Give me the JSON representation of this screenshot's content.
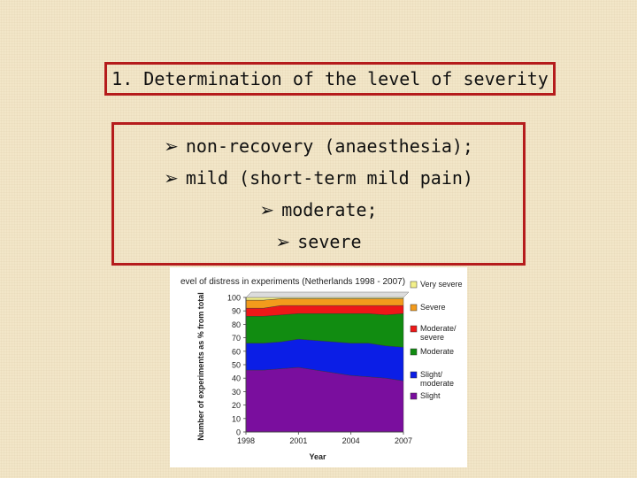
{
  "slide": {
    "title": "1. Determination of the level of severity",
    "bullets": [
      "non-recovery (anaesthesia);",
      "mild (short-term mild pain)",
      "moderate;",
      "severe"
    ],
    "bullet_icon": "arrow-right-icon"
  },
  "chart_data": {
    "type": "area",
    "stacked": true,
    "title": "evel of distress in experiments (Netherlands 1998 - 2007)",
    "xlabel": "Year",
    "ylabel": "Number of experiments as % from total",
    "x": [
      1998,
      1999,
      2000,
      2001,
      2002,
      2003,
      2004,
      2005,
      2006,
      2007
    ],
    "x_tick_labels": [
      "1998",
      "2001",
      "2004",
      "2007"
    ],
    "y_tick_labels": [
      "0",
      "10",
      "20",
      "30",
      "40",
      "50",
      "60",
      "70",
      "80",
      "90",
      "100"
    ],
    "ylim": [
      0,
      100
    ],
    "grid": false,
    "legend_position": "right",
    "series": [
      {
        "name": "Slight",
        "color": "#7a0e9e",
        "values": [
          46,
          46,
          47,
          48,
          46,
          44,
          42,
          41,
          40,
          38
        ]
      },
      {
        "name": "Slight/ moderate",
        "color": "#0b1ee6",
        "values": [
          20,
          20,
          20,
          21,
          22,
          23,
          24,
          25,
          24,
          25
        ]
      },
      {
        "name": "Moderate",
        "color": "#118c11",
        "values": [
          20,
          20,
          20,
          19,
          20,
          21,
          22,
          22,
          23,
          25
        ]
      },
      {
        "name": "Moderate/ severe",
        "color": "#ee1818",
        "values": [
          6,
          6,
          7,
          6,
          6,
          6,
          6,
          6,
          7,
          6
        ]
      },
      {
        "name": "Severe",
        "color": "#f39b1c",
        "values": [
          6,
          6,
          5,
          5,
          5,
          5,
          5,
          5,
          5,
          5
        ]
      },
      {
        "name": "Very severe",
        "color": "#f3f08a",
        "values": [
          2,
          2,
          1,
          1,
          1,
          1,
          1,
          1,
          1,
          1
        ]
      }
    ]
  }
}
